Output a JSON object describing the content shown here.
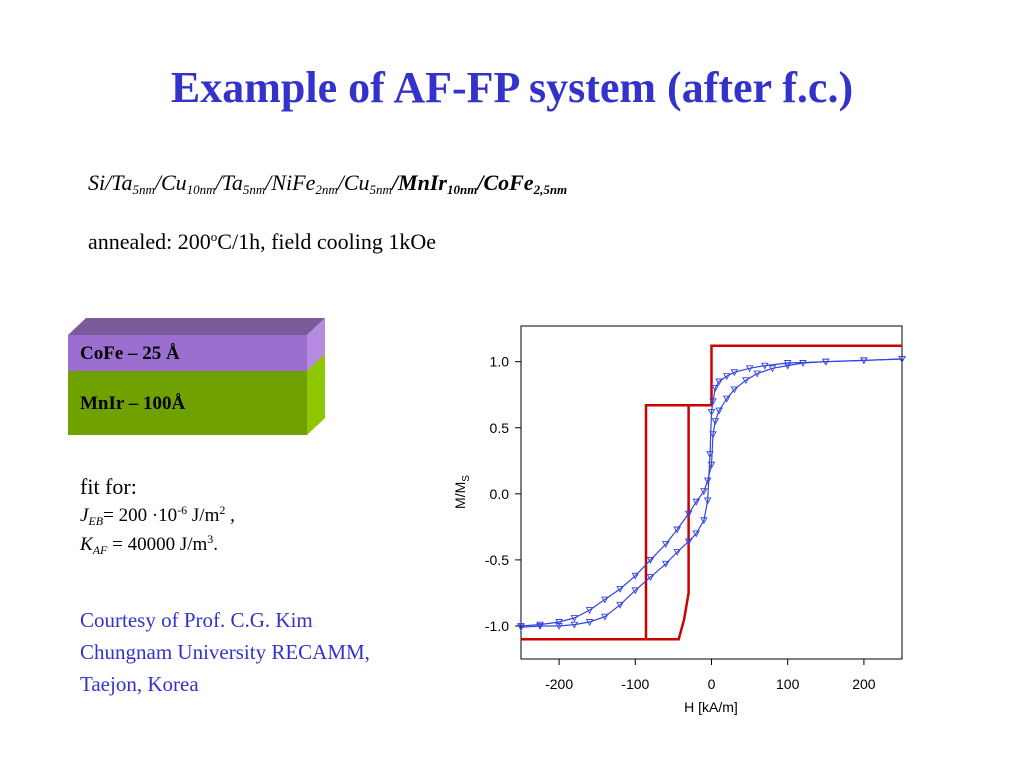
{
  "title": "Example of AF-FP system (after f.c.)",
  "formula": {
    "p1": "Si/Ta",
    "s1": "5nm",
    "p2": "/Cu",
    "s2": "10nm",
    "p3": "/Ta",
    "s3": "5nm",
    "p4": "/NiFe",
    "s4": "2nm",
    "p5": "/Cu",
    "s5": "5nm",
    "p6": "/MnIr",
    "s6": "10nm",
    "p7": "/CoFe",
    "s7": "2,5nm"
  },
  "anneal": {
    "pre": "annealed: 200",
    "sup": "o",
    "post": "C/1h, field cooling 1kOe"
  },
  "layers": {
    "top_label": "CoFe – 25 Å",
    "bottom_label": "MnIr – 100Å",
    "top_color": "#9b6fd0",
    "bottom_color": "#6fa200"
  },
  "fit": {
    "header": "fit for:",
    "jeb_sym": "J",
    "jeb_sub": "EB",
    "jeb_val": "= 200 ·10",
    "jeb_exp": "-6",
    "jeb_unit": " J/m",
    "jeb_unit_exp": "2",
    "jeb_tail": " ,",
    "kaf_sym": "K",
    "kaf_sub": "AF",
    "kaf_val": " = 40000 J/m",
    "kaf_exp": "3",
    "kaf_tail": "."
  },
  "courtesy": {
    "line1": "Courtesy of Prof. C.G. Kim",
    "line2": "Chungnam University RECAMM,",
    "line3": "Taejon, Korea"
  },
  "chart_data": {
    "type": "line",
    "xlabel": "H [kA/m]",
    "ylabel_main": "M/M",
    "ylabel_sub": "S",
    "xlim": [
      -250,
      250
    ],
    "ylim": [
      -1.25,
      1.27
    ],
    "xticks": [
      -200,
      -100,
      0,
      100,
      200
    ],
    "xtick_labels": [
      "-200",
      "-100",
      "0",
      "100",
      "200"
    ],
    "yticks": [
      1.0,
      0.5,
      0.0,
      -0.5,
      -1.0
    ],
    "ytick_labels": [
      "1.0",
      "0.5",
      "0.0",
      "-0.5",
      "-1.0"
    ],
    "grid": false,
    "series": [
      {
        "color": "#cc0000",
        "x": [
          -250,
          -43,
          -36,
          -30,
          -30,
          0,
          0,
          250,
          250,
          0,
          0,
          -86,
          -86,
          -250
        ],
        "y": [
          -1.1,
          -1.1,
          -0.95,
          -0.75,
          0.67,
          0.67,
          1.12,
          1.12,
          1.12,
          1.12,
          0.67,
          0.67,
          -1.1,
          -1.1
        ]
      },
      {
        "color": "#3344dd",
        "marker": "triangle-down",
        "x": [
          -250,
          -225,
          -200,
          -180,
          -160,
          -140,
          -120,
          -100,
          -80,
          -60,
          -45,
          -30,
          -20,
          -10,
          -5,
          0,
          2,
          5,
          10,
          20,
          30,
          45,
          60,
          80,
          100,
          120,
          150,
          200,
          250
        ],
        "y": [
          -1.0,
          -0.99,
          -0.97,
          -0.94,
          -0.88,
          -0.8,
          -0.72,
          -0.62,
          -0.5,
          -0.38,
          -0.27,
          -0.15,
          -0.06,
          0.02,
          0.1,
          0.22,
          0.45,
          0.55,
          0.63,
          0.72,
          0.79,
          0.86,
          0.91,
          0.95,
          0.97,
          0.99,
          1.0,
          1.01,
          1.02
        ]
      },
      {
        "color": "#3344dd",
        "marker": "triangle-down",
        "x": [
          250,
          200,
          150,
          100,
          70,
          50,
          30,
          20,
          10,
          5,
          2,
          0,
          -2,
          -5,
          -10,
          -20,
          -30,
          -45,
          -60,
          -80,
          -100,
          -120,
          -140,
          -160,
          -180,
          -200,
          -225,
          -250
        ],
        "y": [
          1.02,
          1.01,
          1.0,
          0.99,
          0.97,
          0.95,
          0.92,
          0.89,
          0.85,
          0.8,
          0.7,
          0.62,
          0.3,
          -0.05,
          -0.2,
          -0.3,
          -0.36,
          -0.44,
          -0.53,
          -0.63,
          -0.73,
          -0.84,
          -0.93,
          -0.97,
          -0.99,
          -1.0,
          -1.0,
          -1.01
        ]
      }
    ]
  }
}
